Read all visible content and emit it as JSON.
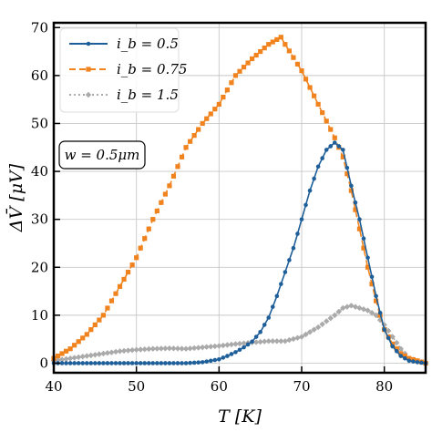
{
  "chart_data": {
    "type": "line",
    "title": "",
    "xlabel": "T [K]",
    "ylabel": "ΔV̄ [μV]",
    "xlim": [
      40,
      85
    ],
    "ylim": [
      -2,
      71
    ],
    "xticks": [
      40,
      50,
      60,
      70,
      80
    ],
    "yticks": [
      0,
      10,
      20,
      30,
      40,
      50,
      60,
      70
    ],
    "grid": true,
    "legend_position": "top-left",
    "annotation": "w = 0.5μm",
    "series": [
      {
        "name": "i_b = 0.5",
        "color": "#1f5f99",
        "linestyle": "solid",
        "marker": "circle",
        "x": [
          40,
          42,
          44,
          46,
          48,
          50,
          52,
          54,
          56,
          58,
          59,
          60,
          61,
          62,
          63,
          64,
          65,
          66,
          67,
          68,
          69,
          70,
          71,
          72,
          73,
          74,
          75,
          76,
          77,
          78,
          79,
          80,
          81,
          82,
          83,
          84,
          85
        ],
        "y": [
          0,
          0,
          0,
          0,
          0,
          0,
          0,
          0,
          0,
          0.2,
          0.5,
          0.8,
          1.5,
          2.3,
          3.3,
          4.5,
          6.5,
          9.5,
          14,
          19,
          24,
          30,
          36,
          41,
          44.5,
          46,
          44.5,
          37,
          30,
          22,
          14,
          7,
          3.5,
          1.5,
          0.5,
          0.2,
          0
        ]
      },
      {
        "name": "i_b = 0.75",
        "color": "#f0831e",
        "linestyle": "dashed",
        "marker": "square",
        "x": [
          40,
          42,
          44,
          46,
          48,
          50,
          52,
          54,
          56,
          58,
          60,
          62,
          64,
          66,
          67,
          67.5,
          68,
          70,
          72,
          74,
          75,
          76,
          77,
          78,
          79,
          80,
          81,
          82,
          83,
          84,
          85
        ],
        "y": [
          1,
          3,
          6,
          10,
          16,
          22,
          30,
          37,
          45,
          50,
          54,
          60,
          63.5,
          66.5,
          67.5,
          68,
          66.5,
          61,
          54,
          47,
          43,
          36,
          28,
          20,
          13,
          7,
          4,
          2,
          1,
          0.5,
          0
        ]
      },
      {
        "name": "i_b = 1.5",
        "color": "#aaaaaa",
        "linestyle": "dotted",
        "marker": "diamond",
        "x": [
          40,
          42,
          44,
          46,
          48,
          50,
          52,
          54,
          56,
          58,
          60,
          62,
          64,
          66,
          68,
          70,
          72,
          74,
          75,
          76,
          77,
          78,
          79,
          80,
          81,
          82,
          83,
          84,
          85
        ],
        "y": [
          0.5,
          1,
          1.5,
          2,
          2.5,
          2.8,
          3,
          3.1,
          3,
          3.3,
          3.6,
          4,
          4.3,
          4.6,
          4.6,
          5.5,
          7.5,
          10,
          11.5,
          12,
          11.5,
          11,
          10,
          8,
          5.5,
          3,
          1,
          0.5,
          0
        ]
      }
    ]
  },
  "legend": {
    "items": [
      {
        "label": "i_b = 0.5"
      },
      {
        "label": "i_b = 0.75"
      },
      {
        "label": "i_b = 1.5"
      }
    ]
  },
  "annotation": {
    "text": "w = 0.5μm"
  }
}
